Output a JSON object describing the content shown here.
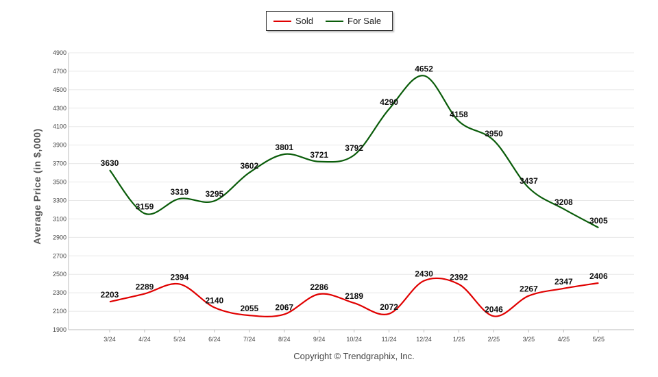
{
  "chart_data": {
    "type": "line",
    "categories": [
      "3/24",
      "4/24",
      "5/24",
      "6/24",
      "7/24",
      "8/24",
      "9/24",
      "10/24",
      "11/24",
      "12/24",
      "1/25",
      "2/25",
      "3/25",
      "4/25",
      "5/25"
    ],
    "series": [
      {
        "name": "Sold",
        "color": "#e00000",
        "values": [
          2203,
          2289,
          2394,
          2140,
          2055,
          2067,
          2286,
          2189,
          2072,
          2430,
          2392,
          2046,
          2267,
          2347,
          2406
        ]
      },
      {
        "name": "For Sale",
        "color": "#0a5c0a",
        "values": [
          3630,
          3159,
          3319,
          3295,
          3602,
          3801,
          3721,
          3792,
          4290,
          4652,
          4158,
          3950,
          3437,
          3208,
          3005
        ]
      }
    ],
    "ylabel": "Average Price (in $,000)",
    "xlabel": "",
    "ylim": [
      1900,
      4900
    ],
    "yticks": [
      1900,
      2100,
      2300,
      2500,
      2700,
      2900,
      3100,
      3300,
      3500,
      3700,
      3900,
      4100,
      4300,
      4500,
      4700,
      4900
    ],
    "grid": true,
    "legend_position": "top-center",
    "smooth": true
  },
  "footer": {
    "copyright": "Copyright © Trendgraphix, Inc."
  }
}
